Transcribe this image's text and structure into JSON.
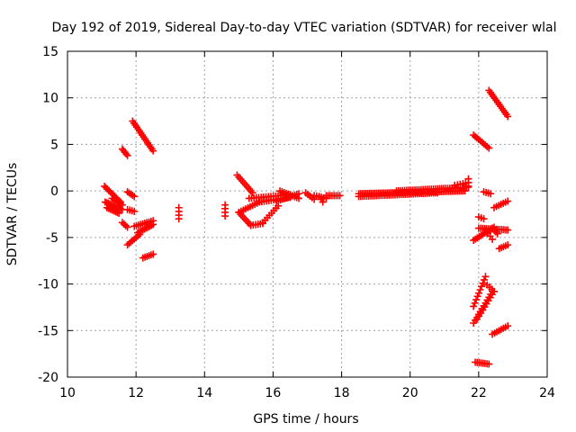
{
  "chart_data": {
    "type": "scatter",
    "title": "Day 192 of 2019, Sidereal Day-to-day VTEC variation (SDTVAR) for receiver wlal",
    "xlabel": "GPS time / hours",
    "ylabel": "SDTVAR / TECUs",
    "xlim": [
      10,
      24
    ],
    "ylim": [
      -20,
      15
    ],
    "xticks": [
      "10",
      "12",
      "14",
      "16",
      "18",
      "20",
      "22",
      "24"
    ],
    "yticks": [
      "15",
      "10",
      "5",
      "0",
      "-5",
      "-10",
      "-15",
      "-20"
    ],
    "grid": true,
    "marker": "plus",
    "color": "#ff0000",
    "segments": [
      {
        "x0": 11.08,
        "y0": 0.5,
        "x1": 11.55,
        "y1": -1.2,
        "n": 12
      },
      {
        "x0": 11.1,
        "y0": -1.2,
        "x1": 11.6,
        "y1": -2.0,
        "n": 12
      },
      {
        "x0": 11.15,
        "y0": -1.8,
        "x1": 11.5,
        "y1": -2.4,
        "n": 8
      },
      {
        "x0": 11.3,
        "y0": -0.8,
        "x1": 11.6,
        "y1": -1.5,
        "n": 6
      },
      {
        "x0": 11.6,
        "y0": 4.5,
        "x1": 11.75,
        "y1": 3.8,
        "n": 5
      },
      {
        "x0": 11.6,
        "y0": -3.4,
        "x1": 11.75,
        "y1": -3.9,
        "n": 4
      },
      {
        "x0": 11.75,
        "y0": -0.1,
        "x1": 11.95,
        "y1": -0.6,
        "n": 5
      },
      {
        "x0": 11.75,
        "y0": -2.0,
        "x1": 11.95,
        "y1": -2.2,
        "n": 4
      },
      {
        "x0": 11.9,
        "y0": 7.5,
        "x1": 12.5,
        "y1": 4.3,
        "n": 16
      },
      {
        "x0": 11.75,
        "y0": -5.8,
        "x1": 12.1,
        "y1": -4.7,
        "n": 8
      },
      {
        "x0": 12.05,
        "y0": -4.5,
        "x1": 12.5,
        "y1": -3.6,
        "n": 10
      },
      {
        "x0": 11.95,
        "y0": -3.8,
        "x1": 12.5,
        "y1": -3.2,
        "n": 10
      },
      {
        "x0": 12.2,
        "y0": -7.2,
        "x1": 12.5,
        "y1": -6.8,
        "n": 6
      },
      {
        "x0": 13.25,
        "y0": -1.8,
        "x1": 13.25,
        "y1": -3.0,
        "n": 4
      },
      {
        "x0": 14.6,
        "y0": -1.5,
        "x1": 14.6,
        "y1": -2.7,
        "n": 4
      },
      {
        "x0": 14.95,
        "y0": 1.7,
        "x1": 15.4,
        "y1": -0.2,
        "n": 10
      },
      {
        "x0": 15.0,
        "y0": -2.3,
        "x1": 15.35,
        "y1": -3.7,
        "n": 8
      },
      {
        "x0": 15.35,
        "y0": -3.7,
        "x1": 15.7,
        "y1": -3.5,
        "n": 6
      },
      {
        "x0": 15.0,
        "y0": -2.3,
        "x1": 15.6,
        "y1": -1.2,
        "n": 10
      },
      {
        "x0": 15.6,
        "y0": -1.2,
        "x1": 16.5,
        "y1": -0.7,
        "n": 14
      },
      {
        "x0": 15.7,
        "y0": -3.4,
        "x1": 16.15,
        "y1": -1.6,
        "n": 8
      },
      {
        "x0": 15.3,
        "y0": -0.8,
        "x1": 16.5,
        "y1": -0.4,
        "n": 18
      },
      {
        "x0": 16.1,
        "y0": -1.1,
        "x1": 16.75,
        "y1": -0.3,
        "n": 12
      },
      {
        "x0": 16.2,
        "y0": 0.0,
        "x1": 16.75,
        "y1": -0.8,
        "n": 10
      },
      {
        "x0": 16.95,
        "y0": -0.2,
        "x1": 17.2,
        "y1": -0.9,
        "n": 5
      },
      {
        "x0": 17.2,
        "y0": -0.5,
        "x1": 17.55,
        "y1": -0.8,
        "n": 6
      },
      {
        "x0": 17.35,
        "y0": -0.6,
        "x1": 17.45,
        "y1": -1.2,
        "n": 3
      },
      {
        "x0": 17.55,
        "y0": -0.5,
        "x1": 17.95,
        "y1": -0.5,
        "n": 8
      },
      {
        "x0": 18.5,
        "y0": -0.3,
        "x1": 21.6,
        "y1": 0.0,
        "n": 60
      },
      {
        "x0": 18.5,
        "y0": -0.6,
        "x1": 20.8,
        "y1": -0.2,
        "n": 40
      },
      {
        "x0": 19.6,
        "y0": 0.0,
        "x1": 21.7,
        "y1": 0.4,
        "n": 36
      },
      {
        "x0": 21.3,
        "y0": 0.6,
        "x1": 21.7,
        "y1": 0.9,
        "n": 6
      },
      {
        "x0": 21.7,
        "y0": 1.3,
        "x1": 21.7,
        "y1": 0.5,
        "n": 3
      },
      {
        "x0": 21.85,
        "y0": 6.0,
        "x1": 22.3,
        "y1": 4.6,
        "n": 10
      },
      {
        "x0": 22.3,
        "y0": 10.8,
        "x1": 22.85,
        "y1": 8.0,
        "n": 14
      },
      {
        "x0": 22.15,
        "y0": -0.1,
        "x1": 22.35,
        "y1": -0.3,
        "n": 4
      },
      {
        "x0": 22.0,
        "y0": -2.8,
        "x1": 22.15,
        "y1": -3.0,
        "n": 3
      },
      {
        "x0": 22.45,
        "y0": -1.8,
        "x1": 22.85,
        "y1": -1.1,
        "n": 7
      },
      {
        "x0": 22.0,
        "y0": -4.0,
        "x1": 22.85,
        "y1": -4.2,
        "n": 16
      },
      {
        "x0": 21.85,
        "y0": -5.3,
        "x1": 22.45,
        "y1": -3.9,
        "n": 12
      },
      {
        "x0": 22.2,
        "y0": -4.2,
        "x1": 22.4,
        "y1": -5.2,
        "n": 4
      },
      {
        "x0": 22.4,
        "y0": -4.0,
        "x1": 22.55,
        "y1": -4.6,
        "n": 4
      },
      {
        "x0": 22.6,
        "y0": -6.2,
        "x1": 22.85,
        "y1": -5.8,
        "n": 5
      },
      {
        "x0": 21.85,
        "y0": -12.4,
        "x1": 22.2,
        "y1": -9.2,
        "n": 10
      },
      {
        "x0": 22.25,
        "y0": -10.1,
        "x1": 22.45,
        "y1": -10.8,
        "n": 4
      },
      {
        "x0": 21.85,
        "y0": -14.2,
        "x1": 22.4,
        "y1": -10.8,
        "n": 12
      },
      {
        "x0": 21.95,
        "y0": -13.8,
        "x1": 22.45,
        "y1": -10.8,
        "n": 10
      },
      {
        "x0": 22.4,
        "y0": -15.4,
        "x1": 22.85,
        "y1": -14.5,
        "n": 8
      },
      {
        "x0": 21.9,
        "y0": -18.4,
        "x1": 22.3,
        "y1": -18.6,
        "n": 8
      }
    ]
  }
}
